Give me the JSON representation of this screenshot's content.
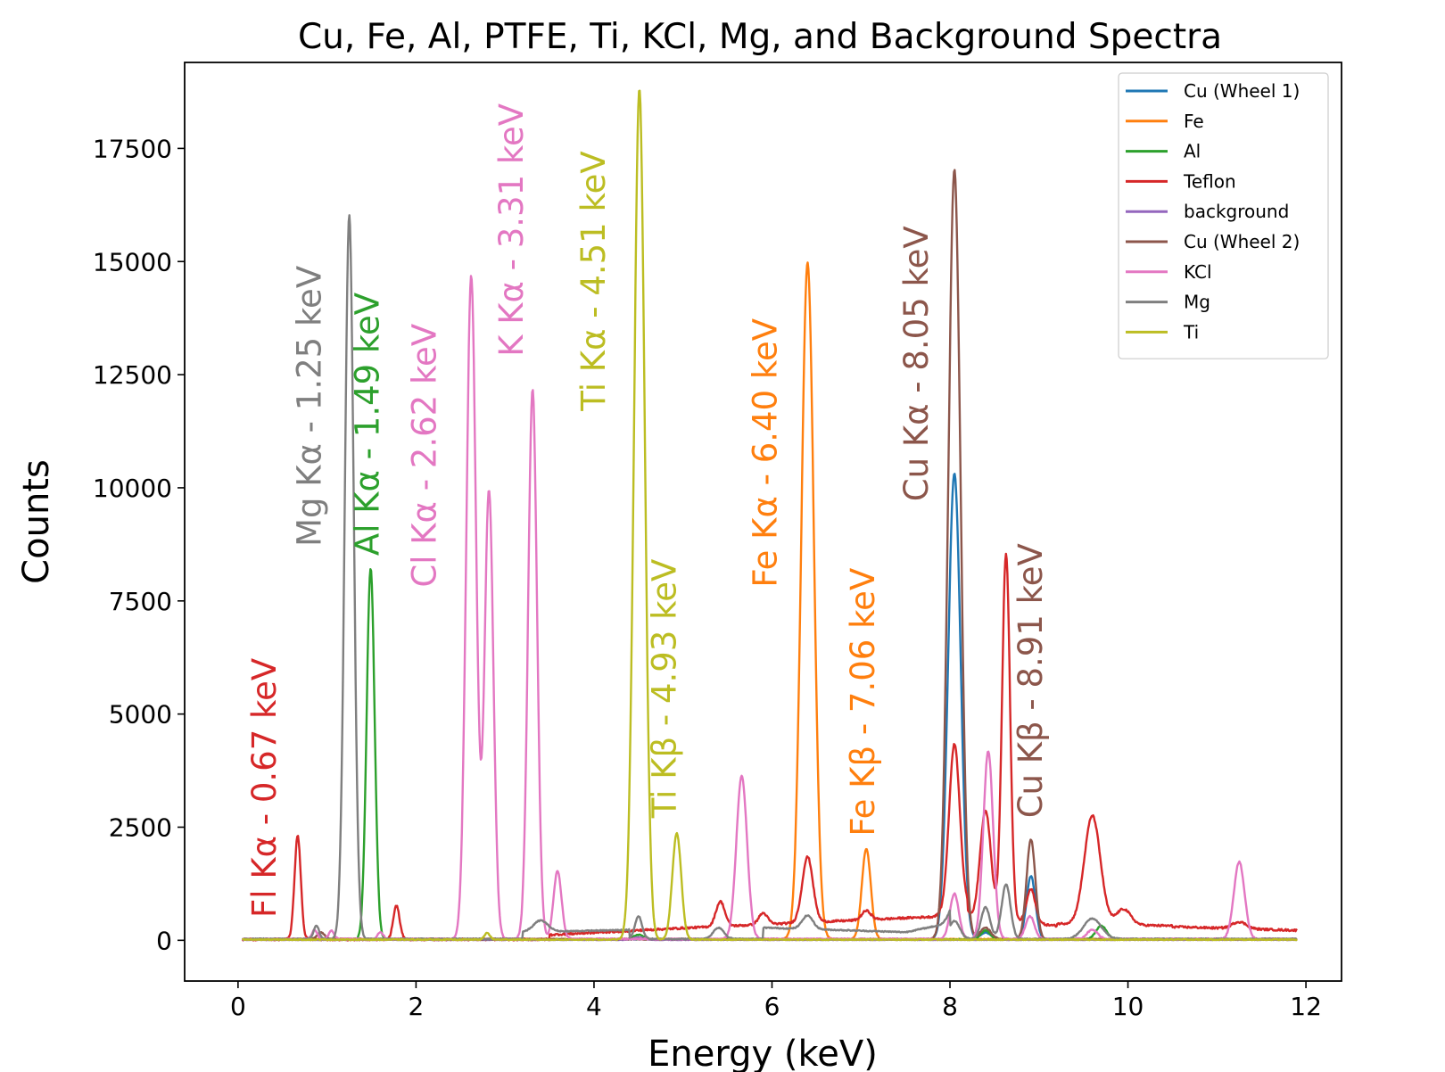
{
  "chart_data": {
    "type": "line",
    "title": "Cu, Fe, Al, PTFE, Ti, KCl, Mg, and Background Spectra",
    "xlabel": "Energy (keV)",
    "ylabel": "Counts",
    "xlim": [
      -0.6,
      12.4
    ],
    "ylim": [
      -900,
      19400
    ],
    "xticks": [
      0,
      2,
      4,
      6,
      8,
      10,
      12
    ],
    "yticks": [
      0,
      2500,
      5000,
      7500,
      10000,
      12500,
      15000,
      17500
    ],
    "legend_position": "top-right",
    "series": [
      {
        "name": "Cu (Wheel 1)",
        "color": "#1f77b4",
        "baseline": 20,
        "noise": 8,
        "x_end": 11.9,
        "peaks": [
          [
            8.05,
            10300,
            0.07
          ],
          [
            8.91,
            1400,
            0.05
          ],
          [
            8.4,
            150,
            0.06
          ]
        ],
        "bumps": []
      },
      {
        "name": "Fe",
        "color": "#ff7f0e",
        "baseline": 25,
        "noise": 10,
        "x_end": 11.9,
        "peaks": [
          [
            6.4,
            14950,
            0.07
          ],
          [
            7.06,
            2000,
            0.05
          ]
        ],
        "bumps": []
      },
      {
        "name": "Al",
        "color": "#2ca02c",
        "baseline": 20,
        "noise": 10,
        "x_end": 11.9,
        "peaks": [
          [
            1.49,
            8200,
            0.045
          ],
          [
            9.7,
            300,
            0.06
          ],
          [
            8.4,
            200,
            0.05
          ],
          [
            4.5,
            100,
            0.06
          ]
        ],
        "bumps": []
      },
      {
        "name": "Teflon",
        "color": "#d62728",
        "baseline": 20,
        "noise": 22,
        "x_end": 11.9,
        "peaks": [
          [
            0.67,
            2300,
            0.035
          ],
          [
            1.78,
            750,
            0.035
          ],
          [
            5.42,
            550,
            0.05
          ],
          [
            5.9,
            250,
            0.05
          ],
          [
            6.4,
            1450,
            0.06
          ],
          [
            7.06,
            200,
            0.05
          ],
          [
            8.05,
            3700,
            0.06
          ],
          [
            8.4,
            2400,
            0.06
          ],
          [
            8.63,
            8100,
            0.045
          ],
          [
            8.91,
            750,
            0.05
          ],
          [
            9.6,
            2400,
            0.09
          ],
          [
            9.95,
            350,
            0.08
          ],
          [
            11.25,
            150,
            0.08
          ]
        ],
        "bumps": [
          [
            3.5,
            5.0,
            100,
            250
          ],
          [
            5.0,
            7.8,
            250,
            500
          ],
          [
            7.8,
            8.2,
            500,
            700
          ],
          [
            8.2,
            9.2,
            500,
            300
          ],
          [
            9.2,
            10.5,
            350,
            300
          ],
          [
            10.5,
            11.9,
            280,
            200
          ]
        ]
      },
      {
        "name": "background",
        "color": "#9467bd",
        "baseline": 10,
        "noise": 6,
        "x_end": 11.9,
        "peaks": [
          [
            4.5,
            60,
            0.06
          ]
        ],
        "bumps": []
      },
      {
        "name": "Cu (Wheel 2)",
        "color": "#8c564b",
        "baseline": 25,
        "noise": 12,
        "x_end": 11.9,
        "peaks": [
          [
            8.05,
            17000,
            0.068
          ],
          [
            8.91,
            2200,
            0.05
          ],
          [
            8.4,
            250,
            0.06
          ],
          [
            0.93,
            150,
            0.04
          ]
        ],
        "bumps": []
      },
      {
        "name": "KCl",
        "color": "#e377c2",
        "baseline": 30,
        "noise": 14,
        "x_end": 11.9,
        "peaks": [
          [
            0.86,
            200,
            0.03
          ],
          [
            1.05,
            180,
            0.03
          ],
          [
            1.6,
            150,
            0.03
          ],
          [
            2.62,
            14650,
            0.055
          ],
          [
            2.82,
            9900,
            0.05
          ],
          [
            3.31,
            12150,
            0.05
          ],
          [
            3.59,
            1500,
            0.045
          ],
          [
            5.66,
            3600,
            0.06
          ],
          [
            8.05,
            1000,
            0.05
          ],
          [
            8.43,
            4150,
            0.055
          ],
          [
            8.9,
            500,
            0.05
          ],
          [
            9.6,
            200,
            0.06
          ],
          [
            11.25,
            1700,
            0.06
          ]
        ],
        "bumps": []
      },
      {
        "name": "Mg",
        "color": "#7f7f7f",
        "baseline": 30,
        "noise": 12,
        "x_end": 11.9,
        "peaks": [
          [
            0.88,
            300,
            0.03
          ],
          [
            1.25,
            16000,
            0.05
          ],
          [
            3.4,
            250,
            0.08
          ],
          [
            4.5,
            500,
            0.04
          ],
          [
            5.4,
            250,
            0.06
          ],
          [
            6.4,
            300,
            0.06
          ],
          [
            8.05,
            400,
            0.06
          ],
          [
            8.4,
            700,
            0.05
          ],
          [
            8.63,
            1200,
            0.05
          ],
          [
            9.6,
            450,
            0.1
          ]
        ],
        "bumps": [
          [
            3.2,
            4.4,
            150,
            200
          ],
          [
            5.9,
            7.5,
            250,
            150
          ],
          [
            7.5,
            8.0,
            150,
            350
          ]
        ]
      },
      {
        "name": "Ti",
        "color": "#bcbd22",
        "baseline": 15,
        "noise": 10,
        "x_end": 11.9,
        "peaks": [
          [
            2.8,
            150,
            0.03
          ],
          [
            4.51,
            18800,
            0.06
          ],
          [
            4.93,
            2350,
            0.05
          ]
        ],
        "bumps": []
      }
    ],
    "annotations": [
      {
        "text": "Fl Kα - 0.67 keV",
        "color": "#d62728",
        "x": 0.42,
        "y": 500
      },
      {
        "text": "Mg Kα - 1.25 keV",
        "color": "#7f7f7f",
        "x": 0.93,
        "y": 8700
      },
      {
        "text": "Al Kα - 1.49 keV",
        "color": "#2ca02c",
        "x": 1.58,
        "y": 8500
      },
      {
        "text": "Cl Kα - 2.62 keV",
        "color": "#e377c2",
        "x": 2.22,
        "y": 7800
      },
      {
        "text": "K Kα - 3.31 keV",
        "color": "#e377c2",
        "x": 3.2,
        "y": 12900
      },
      {
        "text": "Ti Kα - 4.51 keV",
        "color": "#bcbd22",
        "x": 4.12,
        "y": 11700
      },
      {
        "text": "Ti Kβ - 4.93 keV",
        "color": "#bcbd22",
        "x": 4.92,
        "y": 2700
      },
      {
        "text": "Fe Kα - 6.40 keV",
        "color": "#ff7f0e",
        "x": 6.05,
        "y": 7800
      },
      {
        "text": "Fe Kβ - 7.06 keV",
        "color": "#ff7f0e",
        "x": 7.15,
        "y": 2300
      },
      {
        "text": "Cu Kα - 8.05 keV",
        "color": "#8c564b",
        "x": 7.75,
        "y": 9700
      },
      {
        "text": "Cu Kβ - 8.91 keV",
        "color": "#8c564b",
        "x": 9.03,
        "y": 2700
      }
    ]
  }
}
